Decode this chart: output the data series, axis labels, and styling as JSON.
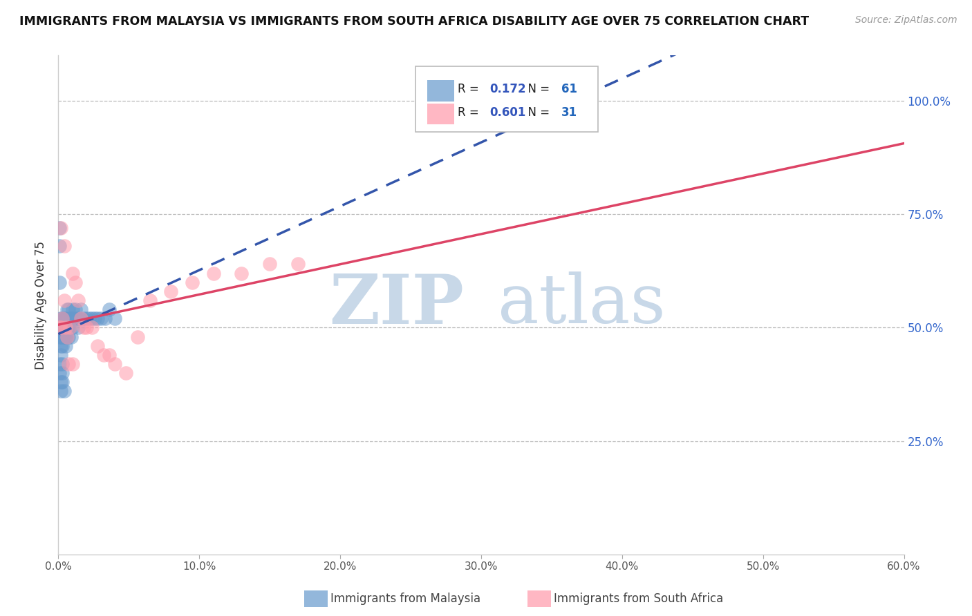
{
  "title": "IMMIGRANTS FROM MALAYSIA VS IMMIGRANTS FROM SOUTH AFRICA DISABILITY AGE OVER 75 CORRELATION CHART",
  "source": "Source: ZipAtlas.com",
  "ylabel": "Disability Age Over 75",
  "xlim": [
    0.0,
    0.6
  ],
  "ylim": [
    0.0,
    1.1
  ],
  "xtick_labels": [
    "0.0%",
    "",
    "",
    "",
    "",
    "",
    "",
    "",
    "",
    "",
    "10.0%",
    "",
    "",
    "",
    "",
    "",
    "",
    "",
    "",
    "",
    "20.0%",
    "",
    "",
    "",
    "",
    "",
    "",
    "",
    "",
    "",
    "30.0%",
    "",
    "",
    "",
    "",
    "",
    "",
    "",
    "",
    "",
    "40.0%",
    "",
    "",
    "",
    "",
    "",
    "",
    "",
    "",
    "",
    "50.0%",
    "",
    "",
    "",
    "",
    "",
    "",
    "",
    "",
    "",
    "60.0%"
  ],
  "xtick_values": [
    0.0,
    0.01,
    0.02,
    0.03,
    0.04,
    0.05,
    0.06,
    0.07,
    0.08,
    0.09,
    0.1,
    0.11,
    0.12,
    0.13,
    0.14,
    0.15,
    0.16,
    0.17,
    0.18,
    0.19,
    0.2,
    0.21,
    0.22,
    0.23,
    0.24,
    0.25,
    0.26,
    0.27,
    0.28,
    0.29,
    0.3,
    0.31,
    0.32,
    0.33,
    0.34,
    0.35,
    0.36,
    0.37,
    0.38,
    0.39,
    0.4,
    0.41,
    0.42,
    0.43,
    0.44,
    0.45,
    0.46,
    0.47,
    0.48,
    0.49,
    0.5,
    0.51,
    0.52,
    0.53,
    0.54,
    0.55,
    0.56,
    0.57,
    0.58,
    0.59,
    0.6
  ],
  "ytick_labels": [
    "25.0%",
    "50.0%",
    "75.0%",
    "100.0%"
  ],
  "ytick_values": [
    0.25,
    0.5,
    0.75,
    1.0
  ],
  "malaysia_color": "#6699CC",
  "malaysia_alpha": 0.55,
  "south_africa_color": "#FF99AA",
  "south_africa_alpha": 0.55,
  "malaysia_R": 0.172,
  "malaysia_N": 61,
  "south_africa_R": 0.601,
  "south_africa_N": 31,
  "reg_malaysia_color": "#3355AA",
  "reg_sa_color": "#DD4466",
  "watermark_zip": "ZIP",
  "watermark_atlas": "atlas",
  "watermark_color": "#C8D8E8",
  "legend_R_color": "#3355BB",
  "legend_N_color": "#2266BB",
  "malaysia_x": [
    0.001,
    0.001,
    0.001,
    0.001,
    0.001,
    0.002,
    0.002,
    0.002,
    0.002,
    0.002,
    0.002,
    0.003,
    0.003,
    0.003,
    0.003,
    0.003,
    0.003,
    0.004,
    0.004,
    0.004,
    0.004,
    0.005,
    0.005,
    0.005,
    0.005,
    0.006,
    0.006,
    0.006,
    0.007,
    0.007,
    0.007,
    0.008,
    0.008,
    0.009,
    0.009,
    0.01,
    0.01,
    0.011,
    0.012,
    0.013,
    0.014,
    0.015,
    0.016,
    0.018,
    0.02,
    0.022,
    0.024,
    0.026,
    0.028,
    0.03,
    0.033,
    0.036,
    0.04,
    0.001,
    0.001,
    0.002,
    0.002,
    0.003,
    0.003,
    0.003,
    0.004
  ],
  "malaysia_y": [
    0.5,
    0.68,
    0.72,
    0.6,
    0.48,
    0.5,
    0.52,
    0.48,
    0.46,
    0.44,
    0.5,
    0.52,
    0.5,
    0.48,
    0.46,
    0.5,
    0.52,
    0.5,
    0.52,
    0.48,
    0.5,
    0.52,
    0.5,
    0.48,
    0.46,
    0.54,
    0.5,
    0.48,
    0.54,
    0.5,
    0.48,
    0.52,
    0.5,
    0.52,
    0.48,
    0.54,
    0.5,
    0.52,
    0.54,
    0.52,
    0.5,
    0.52,
    0.54,
    0.52,
    0.52,
    0.52,
    0.52,
    0.52,
    0.52,
    0.52,
    0.52,
    0.54,
    0.52,
    0.42,
    0.4,
    0.38,
    0.36,
    0.4,
    0.42,
    0.38,
    0.36
  ],
  "south_africa_x": [
    0.001,
    0.002,
    0.003,
    0.004,
    0.005,
    0.006,
    0.008,
    0.01,
    0.012,
    0.014,
    0.016,
    0.018,
    0.02,
    0.024,
    0.028,
    0.032,
    0.036,
    0.04,
    0.048,
    0.056,
    0.065,
    0.08,
    0.095,
    0.11,
    0.13,
    0.15,
    0.17,
    0.002,
    0.004,
    0.007,
    0.01
  ],
  "south_africa_y": [
    0.5,
    0.5,
    0.52,
    0.68,
    0.5,
    0.48,
    0.5,
    0.62,
    0.6,
    0.56,
    0.52,
    0.5,
    0.5,
    0.5,
    0.46,
    0.44,
    0.44,
    0.42,
    0.4,
    0.48,
    0.56,
    0.58,
    0.6,
    0.62,
    0.62,
    0.64,
    0.64,
    0.72,
    0.56,
    0.42,
    0.42
  ],
  "bottom_legend_malaysia": "Immigrants from Malaysia",
  "bottom_legend_sa": "Immigrants from South Africa"
}
